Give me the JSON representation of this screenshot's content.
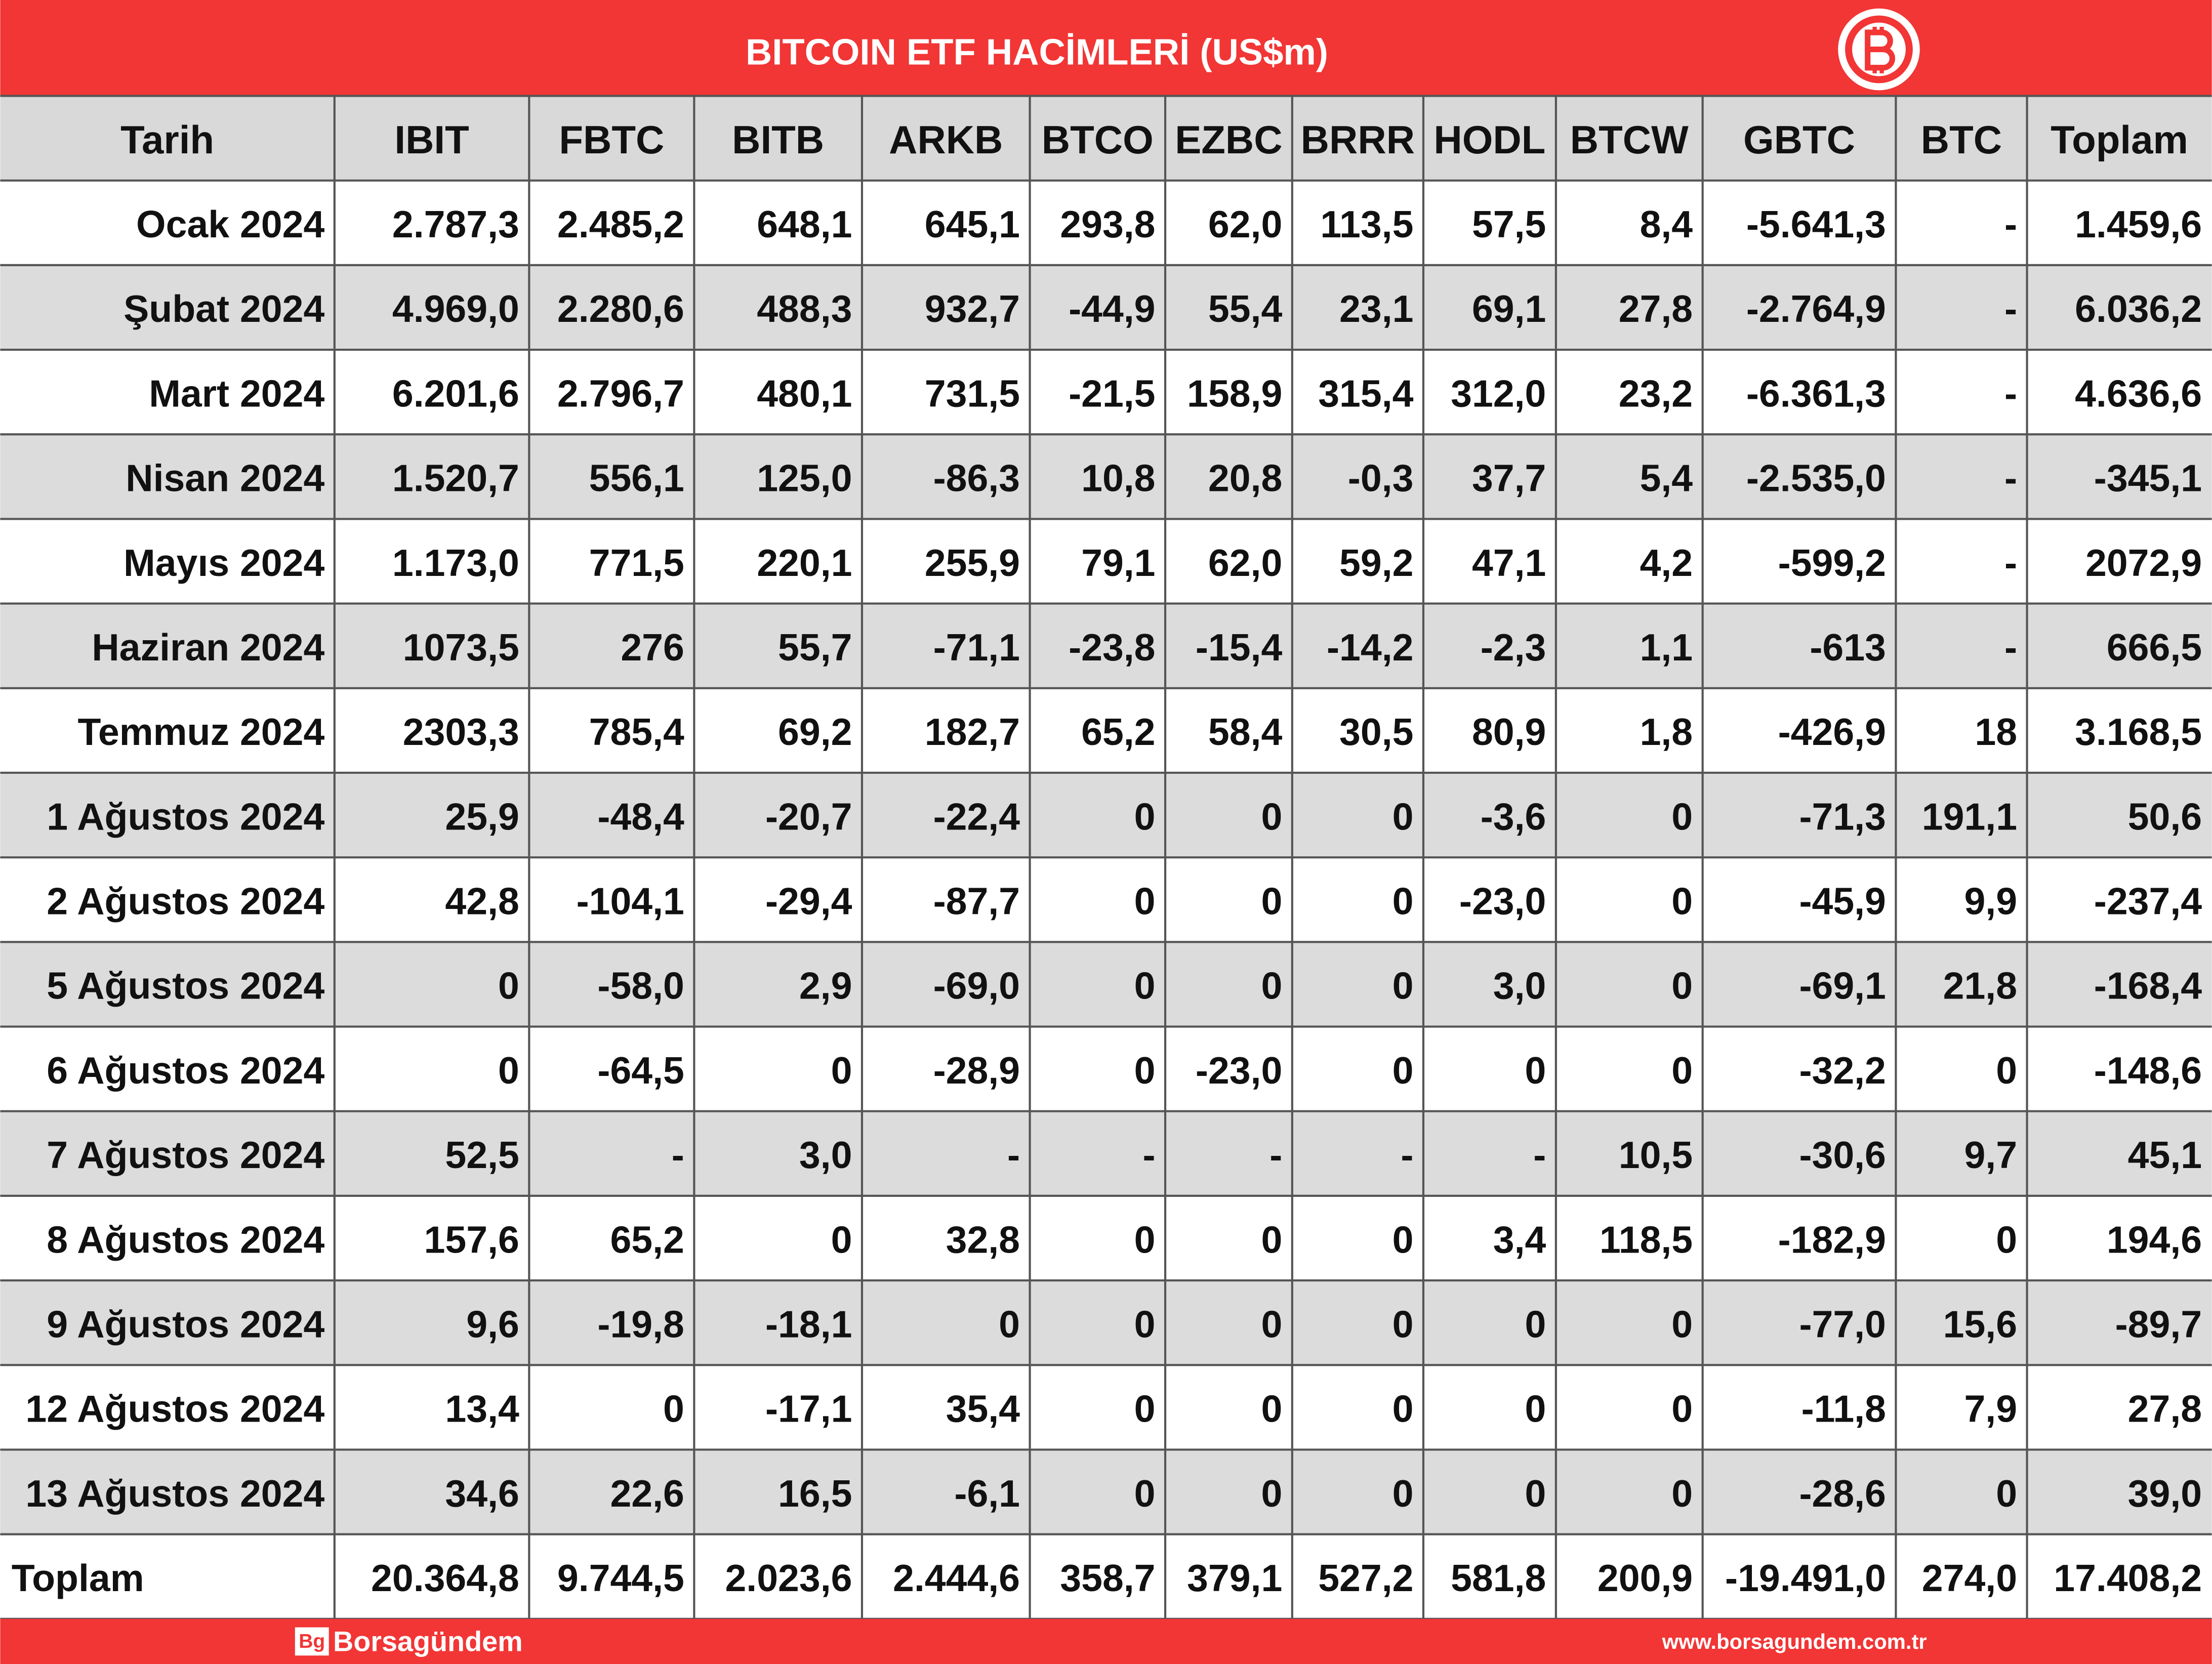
{
  "header": {
    "title": "BITCOIN ETF HACİMLERİ (US$m)"
  },
  "table": {
    "columns": [
      "Tarih",
      "IBIT",
      "FBTC",
      "BITB",
      "ARKB",
      "BTCO",
      "EZBC",
      "BRRR",
      "HODL",
      "BTCW",
      "GBTC",
      "BTC",
      "Toplam"
    ],
    "rows": [
      [
        "Ocak 2024",
        "2.787,3",
        "2.485,2",
        "648,1",
        "645,1",
        "293,8",
        "62,0",
        "113,5",
        "57,5",
        "8,4",
        "-5.641,3",
        "-",
        "1.459,6"
      ],
      [
        "Şubat 2024",
        "4.969,0",
        "2.280,6",
        "488,3",
        "932,7",
        "-44,9",
        "55,4",
        "23,1",
        "69,1",
        "27,8",
        "-2.764,9",
        "-",
        "6.036,2"
      ],
      [
        "Mart 2024",
        "6.201,6",
        "2.796,7",
        "480,1",
        "731,5",
        "-21,5",
        "158,9",
        "315,4",
        "312,0",
        "23,2",
        "-6.361,3",
        "-",
        "4.636,6"
      ],
      [
        "Nisan 2024",
        "1.520,7",
        "556,1",
        "125,0",
        "-86,3",
        "10,8",
        "20,8",
        "-0,3",
        "37,7",
        "5,4",
        "-2.535,0",
        "-",
        "-345,1"
      ],
      [
        "Mayıs 2024",
        "1.173,0",
        "771,5",
        "220,1",
        "255,9",
        "79,1",
        "62,0",
        "59,2",
        "47,1",
        "4,2",
        "-599,2",
        "-",
        "2072,9"
      ],
      [
        "Haziran 2024",
        "1073,5",
        "276",
        "55,7",
        "-71,1",
        "-23,8",
        "-15,4",
        "-14,2",
        "-2,3",
        "1,1",
        "-613",
        "-",
        "666,5"
      ],
      [
        "Temmuz 2024",
        "2303,3",
        "785,4",
        "69,2",
        "182,7",
        "65,2",
        "58,4",
        "30,5",
        "80,9",
        "1,8",
        "-426,9",
        "18",
        "3.168,5"
      ],
      [
        "1 Ağustos 2024",
        "25,9",
        "-48,4",
        "-20,7",
        "-22,4",
        "0",
        "0",
        "0",
        "-3,6",
        "0",
        "-71,3",
        "191,1",
        "50,6"
      ],
      [
        "2 Ağustos 2024",
        "42,8",
        "-104,1",
        "-29,4",
        "-87,7",
        "0",
        "0",
        "0",
        "-23,0",
        "0",
        "-45,9",
        "9,9",
        "-237,4"
      ],
      [
        "5 Ağustos 2024",
        "0",
        "-58,0",
        "2,9",
        "-69,0",
        "0",
        "0",
        "0",
        "3,0",
        "0",
        "-69,1",
        "21,8",
        "-168,4"
      ],
      [
        "6 Ağustos 2024",
        "0",
        "-64,5",
        "0",
        "-28,9",
        "0",
        "-23,0",
        "0",
        "0",
        "0",
        "-32,2",
        "0",
        "-148,6"
      ],
      [
        "7 Ağustos 2024",
        "52,5",
        "-",
        "3,0",
        "-",
        "-",
        "-",
        "-",
        "-",
        "10,5",
        "-30,6",
        "9,7",
        "45,1"
      ],
      [
        "8 Ağustos 2024",
        "157,6",
        "65,2",
        "0",
        "32,8",
        "0",
        "0",
        "0",
        "3,4",
        "118,5",
        "-182,9",
        "0",
        "194,6"
      ],
      [
        "9 Ağustos 2024",
        "9,6",
        "-19,8",
        "-18,1",
        "0",
        "0",
        "0",
        "0",
        "0",
        "0",
        "-77,0",
        "15,6",
        "-89,7"
      ],
      [
        "12 Ağustos 2024",
        "13,4",
        "0",
        "-17,1",
        "35,4",
        "0",
        "0",
        "0",
        "0",
        "0",
        "-11,8",
        "7,9",
        "27,8"
      ],
      [
        "13 Ağustos 2024",
        "34,6",
        "22,6",
        "16,5",
        "-6,1",
        "0",
        "0",
        "0",
        "0",
        "0",
        "-28,6",
        "0",
        "39,0"
      ],
      [
        "Toplam",
        "20.364,8",
        "9.744,5",
        "2.023,6",
        "2.444,6",
        "358,7",
        "379,1",
        "527,2",
        "581,8",
        "200,9",
        "-19.491,0",
        "274,0",
        "17.408,2"
      ]
    ]
  },
  "footer": {
    "logo_mark": "Bg",
    "brand": "Borsagündem",
    "url": "www.borsagundem.com.tr"
  }
}
